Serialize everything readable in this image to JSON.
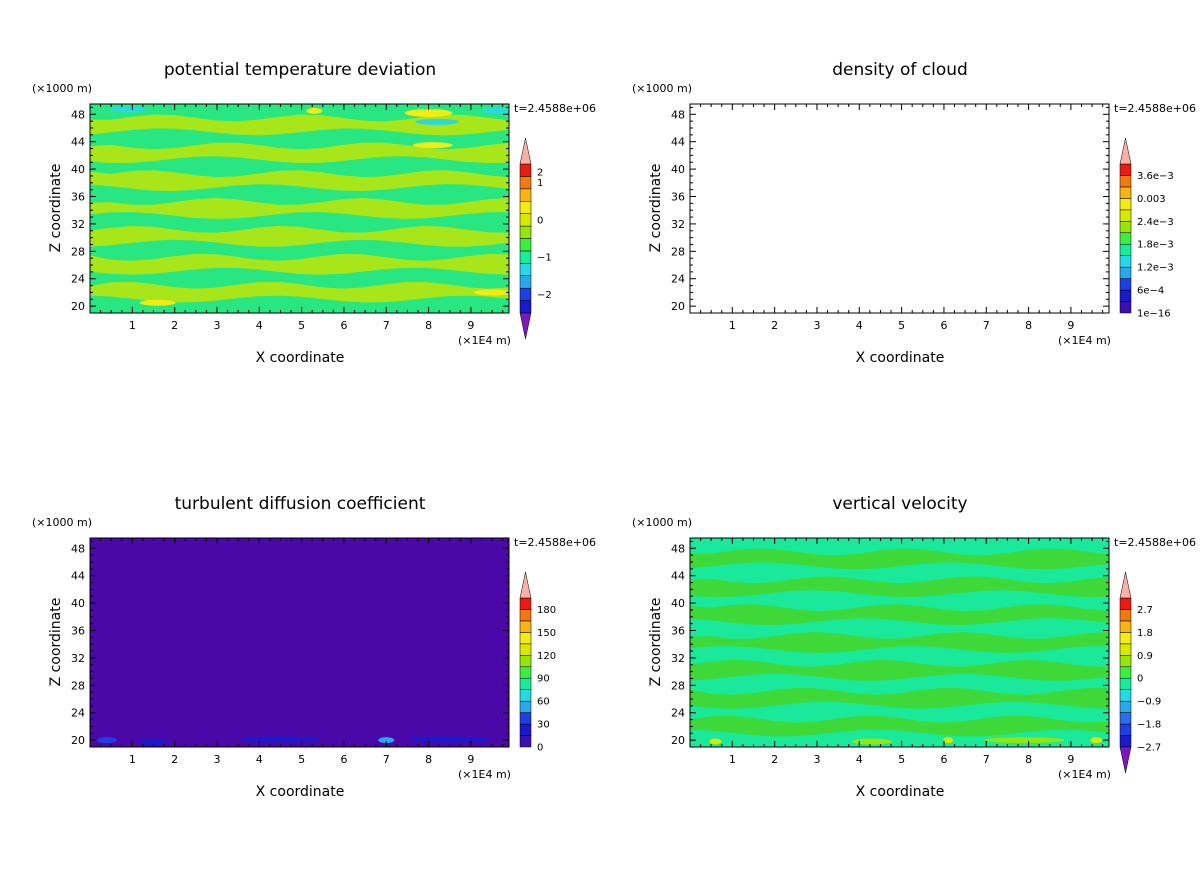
{
  "chart_data": [
    {
      "type": "heatmap",
      "title": "potential temperature deviation",
      "xlabel": "X coordinate",
      "ylabel": "Z coordinate",
      "x_unit": "(×1E4 m)",
      "y_unit": "(×1000 m)",
      "time": "t=2.4588e+06",
      "x_ticks": [
        "1",
        "2",
        "3",
        "4",
        "5",
        "6",
        "7",
        "8",
        "9"
      ],
      "y_ticks": [
        "20",
        "24",
        "28",
        "32",
        "36",
        "40",
        "44",
        "48"
      ],
      "xlim": [
        0,
        9.9
      ],
      "ylim": [
        19,
        49.5
      ],
      "field": "bands",
      "colorbar_labels": [
        "−2",
        "−1",
        "0",
        "1",
        "2"
      ],
      "colorbar_colors": [
        "#1a1acc",
        "#1f3ee6",
        "#2aa8ee",
        "#28d8e6",
        "#18ee9a",
        "#3cee40",
        "#96e60a",
        "#d8e800",
        "#f2ec14",
        "#f8b410",
        "#ee7a10",
        "#e81c10"
      ],
      "colorbar_extend": {
        "top": "#f8b0a8",
        "bottom": "#7a18b8"
      }
    },
    {
      "type": "heatmap",
      "title": "density of cloud",
      "xlabel": "X coordinate",
      "ylabel": "Z coordinate",
      "x_unit": "(×1E4 m)",
      "y_unit": "(×1000 m)",
      "time": "t=2.4588e+06",
      "x_ticks": [
        "1",
        "2",
        "3",
        "4",
        "5",
        "6",
        "7",
        "8",
        "9"
      ],
      "y_ticks": [
        "20",
        "24",
        "28",
        "32",
        "36",
        "40",
        "44",
        "48"
      ],
      "xlim": [
        0,
        9.9
      ],
      "ylim": [
        19,
        49.5
      ],
      "field": "empty",
      "colorbar_labels": [
        "1e−16",
        "6e−4",
        "1.2e−3",
        "1.8e−3",
        "2.4e−3",
        "0.003",
        "3.6e−3"
      ],
      "colorbar_colors": [
        "#3a10b0",
        "#1a1acc",
        "#1f3ee6",
        "#2aa8ee",
        "#28d8e6",
        "#18ee9a",
        "#3cee40",
        "#96e60a",
        "#d8e800",
        "#f2ec14",
        "#f8b410",
        "#ee7a10",
        "#e81c10"
      ],
      "colorbar_extend": {
        "top": "#f8b0a8",
        "bottom": null
      }
    },
    {
      "type": "heatmap",
      "title": "turbulent diffusion coefficient",
      "xlabel": "X coordinate",
      "ylabel": "Z coordinate",
      "x_unit": "(×1E4 m)",
      "y_unit": "(×1000 m)",
      "time": "t=2.4588e+06",
      "x_ticks": [
        "1",
        "2",
        "3",
        "4",
        "5",
        "6",
        "7",
        "8",
        "9"
      ],
      "y_ticks": [
        "20",
        "24",
        "28",
        "32",
        "36",
        "40",
        "44",
        "48"
      ],
      "xlim": [
        0,
        9.9
      ],
      "ylim": [
        19,
        49.5
      ],
      "field": "uniform",
      "colorbar_labels": [
        "0",
        "30",
        "60",
        "90",
        "120",
        "150",
        "180"
      ],
      "colorbar_colors": [
        "#3a10b0",
        "#1a1acc",
        "#1f3ee6",
        "#2aa8ee",
        "#28d8e6",
        "#18ee9a",
        "#3cee40",
        "#96e60a",
        "#d8e800",
        "#f2ec14",
        "#f8b410",
        "#ee7a10",
        "#e81c10"
      ],
      "colorbar_extend": {
        "top": "#f8b0a8",
        "bottom": null
      }
    },
    {
      "type": "heatmap",
      "title": "vertical velocity",
      "xlabel": "X coordinate",
      "ylabel": "Z coordinate",
      "x_unit": "(×1E4 m)",
      "y_unit": "(×1000 m)",
      "time": "t=2.4588e+06",
      "x_ticks": [
        "1",
        "2",
        "3",
        "4",
        "5",
        "6",
        "7",
        "8",
        "9"
      ],
      "y_ticks": [
        "20",
        "24",
        "28",
        "32",
        "36",
        "40",
        "44",
        "48"
      ],
      "xlim": [
        0,
        9.9
      ],
      "ylim": [
        19,
        49.5
      ],
      "field": "bands",
      "colorbar_labels": [
        "−2.7",
        "−1.8",
        "−0.9",
        "0",
        "0.9",
        "1.8",
        "2.7"
      ],
      "colorbar_colors": [
        "#1a1acc",
        "#1f3ee6",
        "#2a6cee",
        "#2aa8ee",
        "#28d8e6",
        "#18ee9a",
        "#3cee40",
        "#96e60a",
        "#d8e800",
        "#f2ec14",
        "#f8b410",
        "#ee7a10",
        "#e81c10"
      ],
      "colorbar_extend": {
        "top": "#f8b0a8",
        "bottom": "#7a18b8"
      }
    }
  ],
  "colors": {
    "band_light": "#a8e61a",
    "band_dark": "#28e682",
    "turbulent_fill": "#4a08a8",
    "w_light": "#3ed838",
    "w_dark": "#1ae89a"
  }
}
